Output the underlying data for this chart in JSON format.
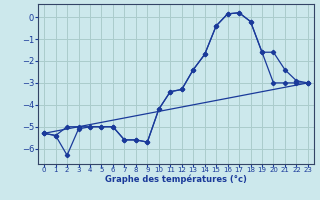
{
  "xlabel": "Graphe des températures (°c)",
  "bg_color": "#cce8ec",
  "grid_color": "#aacccc",
  "line_color": "#1a3a9a",
  "xlim": [
    -0.5,
    23.5
  ],
  "ylim": [
    -6.7,
    0.6
  ],
  "yticks": [
    0,
    -1,
    -2,
    -3,
    -4,
    -5,
    -6
  ],
  "xticks": [
    0,
    1,
    2,
    3,
    4,
    5,
    6,
    7,
    8,
    9,
    10,
    11,
    12,
    13,
    14,
    15,
    16,
    17,
    18,
    19,
    20,
    21,
    22,
    23
  ],
  "line1_x": [
    0,
    1,
    2,
    3,
    4,
    5,
    6,
    7,
    8,
    9,
    10,
    11,
    12,
    13,
    14,
    15,
    16,
    17,
    18,
    19,
    20,
    21,
    22,
    23
  ],
  "line1_y": [
    -5.3,
    -5.4,
    -6.3,
    -5.1,
    -5.0,
    -5.0,
    -5.0,
    -5.6,
    -5.6,
    -5.7,
    -4.2,
    -3.4,
    -3.3,
    -2.4,
    -1.7,
    -0.4,
    0.15,
    0.2,
    -0.2,
    -1.6,
    -1.6,
    -2.4,
    -2.9,
    -3.0
  ],
  "line2_x": [
    0,
    1,
    2,
    3,
    4,
    5,
    6,
    7,
    8,
    9,
    10,
    11,
    12,
    13,
    14,
    15,
    16,
    17,
    18,
    19,
    20,
    21,
    22,
    23
  ],
  "line2_y": [
    -5.3,
    -5.4,
    -5.0,
    -5.0,
    -5.0,
    -5.0,
    -5.0,
    -5.6,
    -5.6,
    -5.7,
    -4.2,
    -3.4,
    -3.3,
    -2.4,
    -1.7,
    -0.4,
    0.15,
    0.2,
    -0.2,
    -1.6,
    -3.0,
    -3.0,
    -3.0,
    -3.0
  ],
  "line3_x": [
    0,
    23
  ],
  "line3_y": [
    -5.3,
    -3.0
  ]
}
